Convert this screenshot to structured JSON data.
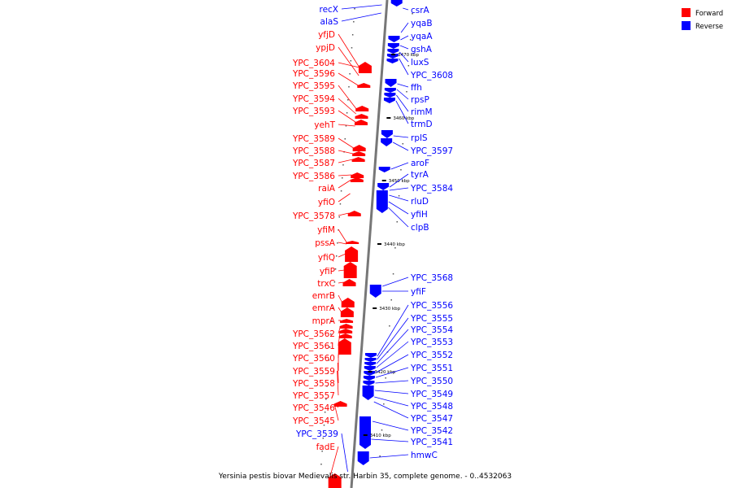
{
  "caption": "Yersinia pestis biovar Medievalis str. Harbin 35, complete genome. - 0..4532063",
  "legend": [
    {
      "label": "Forward",
      "color": "#ff0000"
    },
    {
      "label": "Reverse",
      "color": "#0000ff"
    }
  ],
  "scale_ticks": [
    "3470 kbp",
    "3460 kbp",
    "3450 kbp",
    "3440 kbp",
    "3430 kbp",
    "3420 kbp",
    "3410 kbp"
  ],
  "forward_genes": [
    "yfjD",
    "ypjD",
    "YPC_3604",
    "YPC_3596",
    "YPC_3595",
    "YPC_3594",
    "YPC_3593",
    "yehT",
    "YPC_3589",
    "YPC_3588",
    "YPC_3587",
    "YPC_3586",
    "raiA",
    "yfiO",
    "YPC_3578",
    "yfiM",
    "pssA",
    "yfiQ",
    "yfiP",
    "trxC",
    "emrB",
    "emrA",
    "mprA",
    "YPC_3562",
    "YPC_3561",
    "YPC_3560",
    "YPC_3559",
    "YPC_3558",
    "YPC_3557",
    "YPC_3546",
    "YPC_3545",
    "fadE"
  ],
  "reverse_genes_left": [
    "recX",
    "alaS",
    "YPC_3539"
  ],
  "reverse_genes_right": [
    "csrA",
    "yqaB",
    "yqaA",
    "gshA",
    "luxS",
    "YPC_3608",
    "ffh",
    "rpsP",
    "rimM",
    "trmD",
    "rplS",
    "YPC_3597",
    "aroF",
    "tyrA",
    "YPC_3584",
    "rluD",
    "yfiH",
    "clpB",
    "YPC_3568",
    "yfiF",
    "YPC_3556",
    "YPC_3555",
    "YPC_3554",
    "YPC_3553",
    "YPC_3552",
    "YPC_3551",
    "YPC_3550",
    "YPC_3549",
    "YPC_3548",
    "YPC_3547",
    "YPC_3542",
    "YPC_3541",
    "hmwC"
  ]
}
